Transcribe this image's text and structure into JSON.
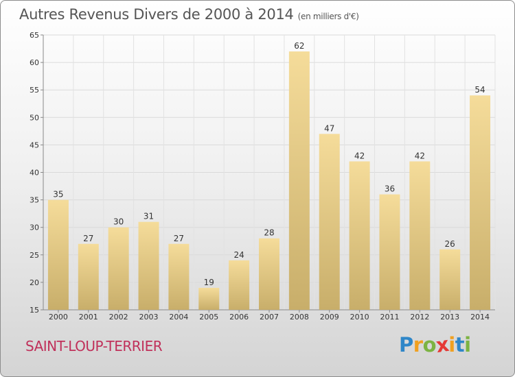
{
  "chart_data": {
    "type": "bar",
    "title": "Autres Revenus Divers de 2000 à 2014",
    "subtitle": "(en milliers d'€)",
    "categories": [
      "2000",
      "2001",
      "2002",
      "2003",
      "2004",
      "2005",
      "2006",
      "2007",
      "2008",
      "2009",
      "2010",
      "2011",
      "2012",
      "2013",
      "2014"
    ],
    "values": [
      35,
      27,
      30,
      31,
      27,
      19,
      24,
      28,
      62,
      47,
      42,
      36,
      42,
      26,
      54
    ],
    "ylim": [
      15,
      65
    ],
    "yticks": [
      15,
      20,
      25,
      30,
      35,
      40,
      45,
      50,
      55,
      60,
      65
    ],
    "xlabel": "",
    "ylabel": "",
    "grid": true,
    "bar_color_top": "#f5dc9a",
    "bar_color_bottom": "#c8ae6a"
  },
  "location": "SAINT-LOUP-TERRIER",
  "logo": {
    "letters": [
      "P",
      "r",
      "o",
      "x",
      "i",
      "t",
      "i"
    ]
  }
}
